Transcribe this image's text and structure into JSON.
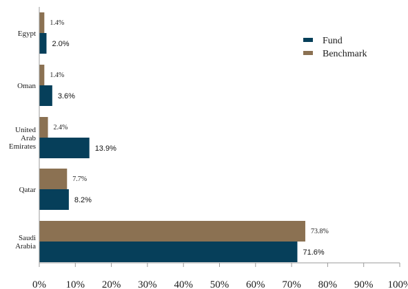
{
  "chart_data": {
    "type": "bar",
    "orientation": "horizontal",
    "categories": [
      "Egypt",
      "Oman",
      "United Arab Emirates",
      "Qatar",
      "Saudi Arabia"
    ],
    "category_lines": [
      [
        "Egypt"
      ],
      [
        "Oman"
      ],
      [
        "United",
        "Arab",
        "Emirates"
      ],
      [
        "Qatar"
      ],
      [
        "Saudi",
        "Arabia"
      ]
    ],
    "series": [
      {
        "name": "Fund",
        "color": "#063f5a",
        "values": [
          2.0,
          3.6,
          13.9,
          8.2,
          71.6
        ],
        "labels": [
          "2.0%",
          "3.6%",
          "13.9%",
          "8.2%",
          "71.6%"
        ]
      },
      {
        "name": "Benchmark",
        "color": "#8b7152",
        "values": [
          1.4,
          1.4,
          2.4,
          7.7,
          73.8
        ],
        "labels": [
          "1.4%",
          "1.4%",
          "2.4%",
          "7.7%",
          "73.8%"
        ]
      }
    ],
    "xlim": [
      0,
      100
    ],
    "xticks": [
      "0%",
      "10%",
      "20%",
      "30%",
      "40%",
      "50%",
      "60%",
      "70%",
      "80%",
      "90%",
      "100%"
    ],
    "title": "",
    "xlabel": "",
    "ylabel": "",
    "legend": "top-right",
    "grid": false
  }
}
